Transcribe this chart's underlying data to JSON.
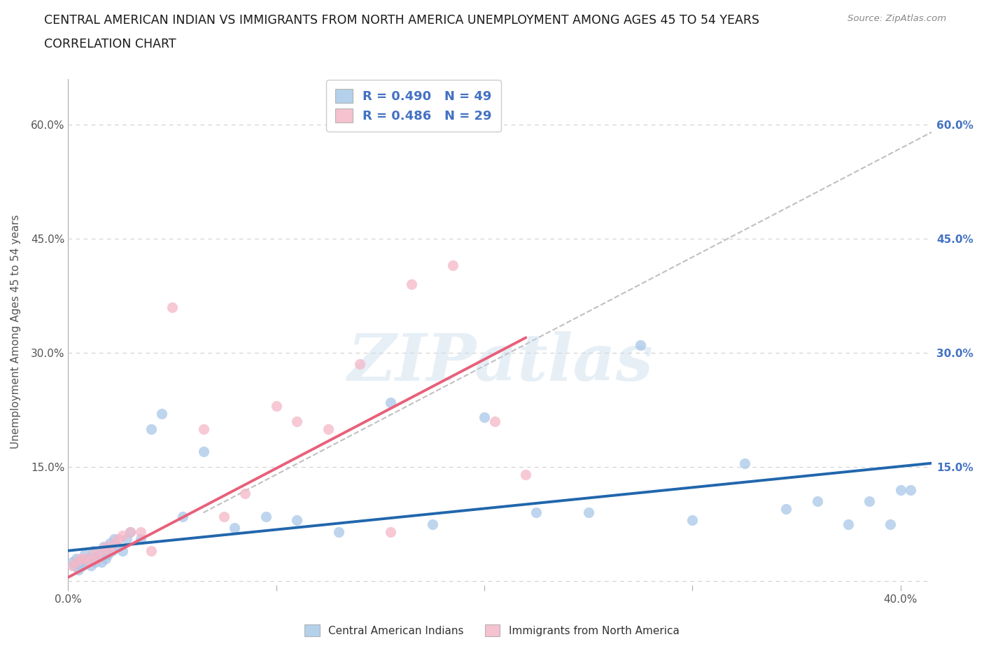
{
  "title_line1": "CENTRAL AMERICAN INDIAN VS IMMIGRANTS FROM NORTH AMERICA UNEMPLOYMENT AMONG AGES 45 TO 54 YEARS",
  "title_line2": "CORRELATION CHART",
  "source": "Source: ZipAtlas.com",
  "ylabel": "Unemployment Among Ages 45 to 54 years",
  "xlim": [
    0.0,
    0.415
  ],
  "ylim": [
    -0.005,
    0.66
  ],
  "xtick_values": [
    0.0,
    0.1,
    0.2,
    0.3,
    0.4
  ],
  "xtick_labels": [
    "0.0%",
    "",
    "",
    "",
    "40.0%"
  ],
  "ytick_values": [
    0.0,
    0.15,
    0.3,
    0.45,
    0.6
  ],
  "ytick_labels_left": [
    "",
    "15.0%",
    "30.0%",
    "45.0%",
    "60.0%"
  ],
  "ytick_values_right": [
    0.15,
    0.3,
    0.45,
    0.6
  ],
  "ytick_labels_right": [
    "15.0%",
    "30.0%",
    "45.0%",
    "60.0%"
  ],
  "watermark": "ZIPatlas",
  "legend_r1": "R = 0.490",
  "legend_n1": "N = 49",
  "legend_r2": "R = 0.486",
  "legend_n2": "N = 29",
  "legend_label1": "Central American Indians",
  "legend_label2": "Immigrants from North America",
  "color_blue": "#a8c8e8",
  "color_pink": "#f4b8c8",
  "color_blue_line": "#2166ac",
  "color_pink_line": "#e8607a",
  "color_dashed": "#c0c0c0",
  "blue_scatter_x": [
    0.002,
    0.003,
    0.004,
    0.005,
    0.006,
    0.007,
    0.008,
    0.009,
    0.01,
    0.011,
    0.012,
    0.013,
    0.014,
    0.015,
    0.016,
    0.017,
    0.018,
    0.019,
    0.02,
    0.021,
    0.022,
    0.024,
    0.026,
    0.028,
    0.03,
    0.035,
    0.04,
    0.045,
    0.055,
    0.065,
    0.08,
    0.095,
    0.11,
    0.13,
    0.155,
    0.175,
    0.2,
    0.225,
    0.25,
    0.275,
    0.3,
    0.325,
    0.345,
    0.36,
    0.375,
    0.385,
    0.395,
    0.4,
    0.405
  ],
  "blue_scatter_y": [
    0.025,
    0.02,
    0.03,
    0.015,
    0.025,
    0.02,
    0.035,
    0.025,
    0.03,
    0.02,
    0.04,
    0.025,
    0.03,
    0.035,
    0.025,
    0.045,
    0.03,
    0.035,
    0.05,
    0.04,
    0.055,
    0.045,
    0.04,
    0.055,
    0.065,
    0.055,
    0.2,
    0.22,
    0.085,
    0.17,
    0.07,
    0.085,
    0.08,
    0.065,
    0.235,
    0.075,
    0.215,
    0.09,
    0.09,
    0.31,
    0.08,
    0.155,
    0.095,
    0.105,
    0.075,
    0.105,
    0.075,
    0.12,
    0.12
  ],
  "pink_scatter_x": [
    0.002,
    0.004,
    0.006,
    0.008,
    0.01,
    0.012,
    0.014,
    0.016,
    0.018,
    0.02,
    0.022,
    0.024,
    0.026,
    0.03,
    0.035,
    0.04,
    0.05,
    0.065,
    0.075,
    0.085,
    0.1,
    0.11,
    0.125,
    0.14,
    0.155,
    0.165,
    0.185,
    0.205,
    0.22
  ],
  "pink_scatter_y": [
    0.02,
    0.025,
    0.03,
    0.03,
    0.025,
    0.035,
    0.03,
    0.04,
    0.045,
    0.04,
    0.05,
    0.055,
    0.06,
    0.065,
    0.065,
    0.04,
    0.36,
    0.2,
    0.085,
    0.115,
    0.23,
    0.21,
    0.2,
    0.285,
    0.065,
    0.39,
    0.415,
    0.21,
    0.14
  ],
  "blue_line_x": [
    0.0,
    0.415
  ],
  "blue_line_y": [
    0.04,
    0.155
  ],
  "pink_line_x": [
    0.0,
    0.22
  ],
  "pink_line_y": [
    0.005,
    0.32
  ],
  "dashed_line_x": [
    0.065,
    0.415
  ],
  "dashed_line_y": [
    0.09,
    0.59
  ],
  "background_color": "#ffffff",
  "grid_color": "#d0d0d0"
}
